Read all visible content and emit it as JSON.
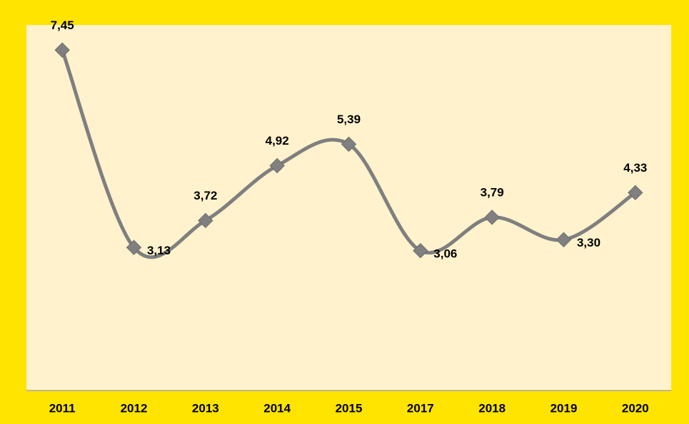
{
  "chart_data": {
    "type": "line",
    "categories": [
      "2011",
      "2012",
      "2013",
      "2014",
      "2015",
      "2017",
      "2018",
      "2019",
      "2020"
    ],
    "series": [
      {
        "color": "#7f7f7f",
        "values": [
          7.45,
          3.13,
          3.72,
          4.92,
          5.39,
          3.06,
          3.79,
          3.3,
          4.33
        ],
        "value_labels": [
          "7,45",
          "3,13",
          "3,72",
          "4,92",
          "5,39",
          "3,06",
          "3,79",
          "3,30",
          "4,33"
        ]
      }
    ],
    "ylim": [
      0,
      8
    ],
    "smooth": true,
    "marker": "diamond"
  }
}
